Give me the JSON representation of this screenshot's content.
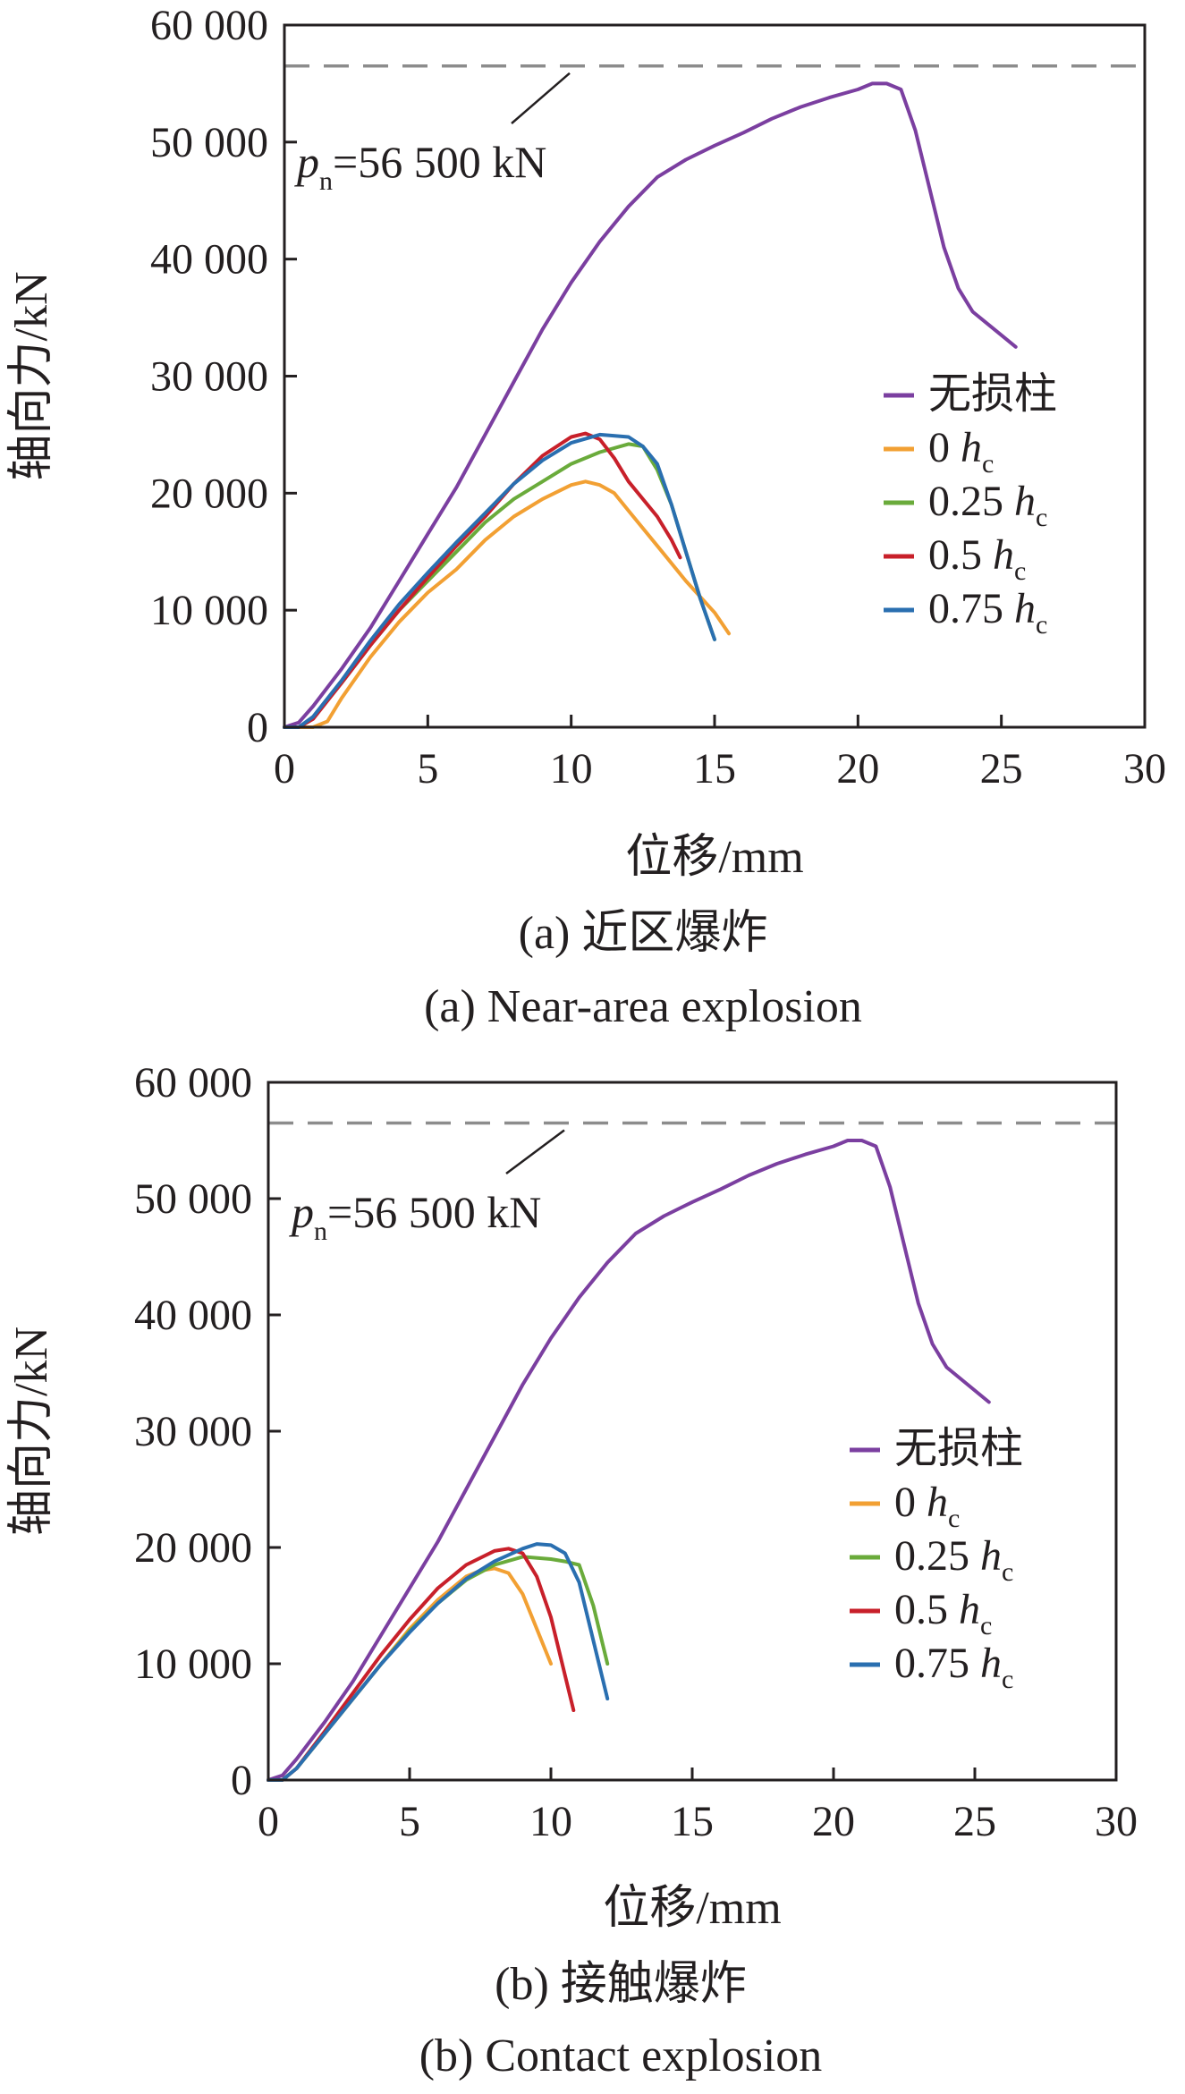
{
  "chart_data": [
    {
      "type": "line",
      "title": "",
      "caption_cn": "(a) 近区爆炸",
      "caption_en": "(a) Near-area explosion",
      "xlabel": "位移/mm",
      "ylabel": "轴向力/kN",
      "xlim": [
        0,
        30
      ],
      "ylim": [
        0,
        60000
      ],
      "xticks": [
        0,
        5,
        10,
        15,
        20,
        25,
        30
      ],
      "yticks": [
        0,
        10000,
        20000,
        30000,
        40000,
        50000,
        60000
      ],
      "xtick_labels": [
        "0",
        "5",
        "10",
        "15",
        "20",
        "25",
        "30"
      ],
      "ytick_labels": [
        "0",
        "10 000",
        "20 000",
        "30 000",
        "40 000",
        "50 000",
        "60 000"
      ],
      "grid": false,
      "legend_position": "right",
      "reference_line": {
        "y": 56500,
        "style": "dashed",
        "color": "#8c8c8c"
      },
      "annotation": {
        "symbol": "p",
        "subscript": "n",
        "text": "=56 500 kN",
        "x": 10,
        "y": 56500
      },
      "series": [
        {
          "name": "无损柱",
          "unit_symbol": "",
          "unit_subscript": "",
          "color": "#7b3fa0",
          "x": [
            0,
            0.5,
            1,
            2,
            3,
            4,
            5,
            6,
            7,
            8,
            9,
            10,
            11,
            12,
            13,
            14,
            15,
            16,
            17,
            18,
            19,
            20,
            20.5,
            21,
            21.5,
            22,
            22.5,
            23,
            23.5,
            24,
            24.5,
            25,
            25.5
          ],
          "y": [
            0,
            400,
            1800,
            5000,
            8500,
            12500,
            16500,
            20500,
            25000,
            29500,
            34000,
            38000,
            41500,
            44500,
            47000,
            48500,
            49700,
            50800,
            52000,
            53000,
            53800,
            54500,
            55000,
            55000,
            54500,
            51000,
            46000,
            41000,
            37500,
            35500,
            34500,
            33500,
            32500
          ]
        },
        {
          "name": "0 ",
          "unit_symbol": "h",
          "unit_subscript": "c",
          "color": "#f2a033",
          "x": [
            0,
            1,
            1.5,
            2,
            3,
            4,
            5,
            6,
            7,
            8,
            9,
            10,
            10.5,
            11,
            11.5,
            12,
            13,
            14,
            15,
            15.5
          ],
          "y": [
            0,
            0,
            500,
            2500,
            6000,
            9000,
            11500,
            13500,
            16000,
            18000,
            19500,
            20700,
            21000,
            20700,
            20000,
            18500,
            15500,
            12500,
            9800,
            8000
          ]
        },
        {
          "name": "0.25 ",
          "unit_symbol": "h",
          "unit_subscript": "c",
          "color": "#6aab3b",
          "x": [
            0,
            0.5,
            1,
            2,
            3,
            4,
            5,
            6,
            7,
            8,
            9,
            10,
            11,
            12,
            12.5,
            13,
            13.5,
            14,
            14.5,
            15
          ],
          "y": [
            0,
            0,
            800,
            3800,
            7000,
            10000,
            12500,
            15000,
            17500,
            19500,
            21000,
            22500,
            23500,
            24200,
            24000,
            22000,
            19000,
            15000,
            11000,
            7500
          ]
        },
        {
          "name": "0.5 ",
          "unit_symbol": "h",
          "unit_subscript": "c",
          "color": "#c8202a",
          "x": [
            0,
            0.5,
            1,
            2,
            3,
            4,
            5,
            6,
            7,
            8,
            9,
            10,
            10.5,
            11,
            11.5,
            12,
            12.5,
            13,
            13.5,
            13.8
          ],
          "y": [
            0,
            0,
            700,
            3800,
            7000,
            10000,
            12800,
            15500,
            18000,
            20800,
            23200,
            24800,
            25100,
            24600,
            23000,
            21000,
            19500,
            18000,
            16000,
            14500
          ]
        },
        {
          "name": "0.75 ",
          "unit_symbol": "h",
          "unit_subscript": "c",
          "color": "#2a6fb0",
          "x": [
            0,
            0.5,
            1,
            2,
            3,
            4,
            5,
            6,
            7,
            8,
            9,
            10,
            11,
            12,
            12.5,
            13,
            13.5,
            14,
            14.5,
            15
          ],
          "y": [
            0,
            0,
            900,
            4000,
            7400,
            10500,
            13200,
            15800,
            18300,
            20800,
            22800,
            24300,
            25000,
            24800,
            24000,
            22500,
            19000,
            15000,
            11000,
            7500
          ]
        }
      ]
    },
    {
      "type": "line",
      "title": "",
      "caption_cn": "(b) 接触爆炸",
      "caption_en": "(b) Contact explosion",
      "xlabel": "位移/mm",
      "ylabel": "轴向力/kN",
      "xlim": [
        0,
        30
      ],
      "ylim": [
        0,
        60000
      ],
      "xticks": [
        0,
        5,
        10,
        15,
        20,
        25,
        30
      ],
      "yticks": [
        0,
        10000,
        20000,
        30000,
        40000,
        50000,
        60000
      ],
      "xtick_labels": [
        "0",
        "5",
        "10",
        "15",
        "20",
        "25",
        "30"
      ],
      "ytick_labels": [
        "0",
        "10 000",
        "20 000",
        "30 000",
        "40 000",
        "50 000",
        "60 000"
      ],
      "grid": false,
      "legend_position": "right",
      "reference_line": {
        "y": 56500,
        "style": "dashed",
        "color": "#8c8c8c"
      },
      "annotation": {
        "symbol": "p",
        "subscript": "n",
        "text": "=56 500 kN",
        "x": 10,
        "y": 56500
      },
      "series": [
        {
          "name": "无损柱",
          "unit_symbol": "",
          "unit_subscript": "",
          "color": "#7b3fa0",
          "x": [
            0,
            0.5,
            1,
            2,
            3,
            4,
            5,
            6,
            7,
            8,
            9,
            10,
            11,
            12,
            13,
            14,
            15,
            16,
            17,
            18,
            19,
            20,
            20.5,
            21,
            21.5,
            22,
            22.5,
            23,
            23.5,
            24,
            24.5,
            25,
            25.5
          ],
          "y": [
            0,
            400,
            1800,
            5000,
            8500,
            12500,
            16500,
            20500,
            25000,
            29500,
            34000,
            38000,
            41500,
            44500,
            47000,
            48500,
            49700,
            50800,
            52000,
            53000,
            53800,
            54500,
            55000,
            55000,
            54500,
            51000,
            46000,
            41000,
            37500,
            35500,
            34500,
            33500,
            32500
          ]
        },
        {
          "name": "0 ",
          "unit_symbol": "h",
          "unit_subscript": "c",
          "color": "#f2a033",
          "x": [
            0,
            0.5,
            1,
            2,
            3,
            4,
            5,
            6,
            7,
            7.5,
            8,
            8.5,
            9,
            9.5,
            10
          ],
          "y": [
            0,
            0,
            1000,
            4000,
            7000,
            10000,
            13000,
            15500,
            17500,
            18000,
            18200,
            17800,
            16000,
            13000,
            10000
          ]
        },
        {
          "name": "0.25 ",
          "unit_symbol": "h",
          "unit_subscript": "c",
          "color": "#6aab3b",
          "x": [
            0,
            0.5,
            1,
            2,
            3,
            4,
            5,
            6,
            7,
            8,
            9,
            10,
            10.5,
            11,
            11.5,
            12
          ],
          "y": [
            0,
            0,
            1000,
            4000,
            7000,
            10000,
            12800,
            15200,
            17200,
            18500,
            19200,
            19000,
            18800,
            18500,
            15000,
            10000
          ]
        },
        {
          "name": "0.5 ",
          "unit_symbol": "h",
          "unit_subscript": "c",
          "color": "#c8202a",
          "x": [
            0,
            0.5,
            1,
            2,
            3,
            4,
            5,
            6,
            7,
            8,
            8.5,
            9,
            9.5,
            10,
            10.5,
            10.8
          ],
          "y": [
            0,
            0,
            1000,
            4200,
            7500,
            10800,
            13800,
            16500,
            18500,
            19700,
            19900,
            19500,
            17500,
            14000,
            9000,
            6000
          ]
        },
        {
          "name": "0.75 ",
          "unit_symbol": "h",
          "unit_subscript": "c",
          "color": "#2a6fb0",
          "x": [
            0,
            0.5,
            1,
            2,
            3,
            4,
            5,
            6,
            7,
            8,
            9,
            9.5,
            10,
            10.5,
            11,
            11.5,
            12
          ],
          "y": [
            0,
            0,
            1000,
            4000,
            7000,
            10000,
            12700,
            15200,
            17300,
            18800,
            19900,
            20300,
            20200,
            19500,
            17000,
            12000,
            7000
          ]
        }
      ]
    }
  ]
}
